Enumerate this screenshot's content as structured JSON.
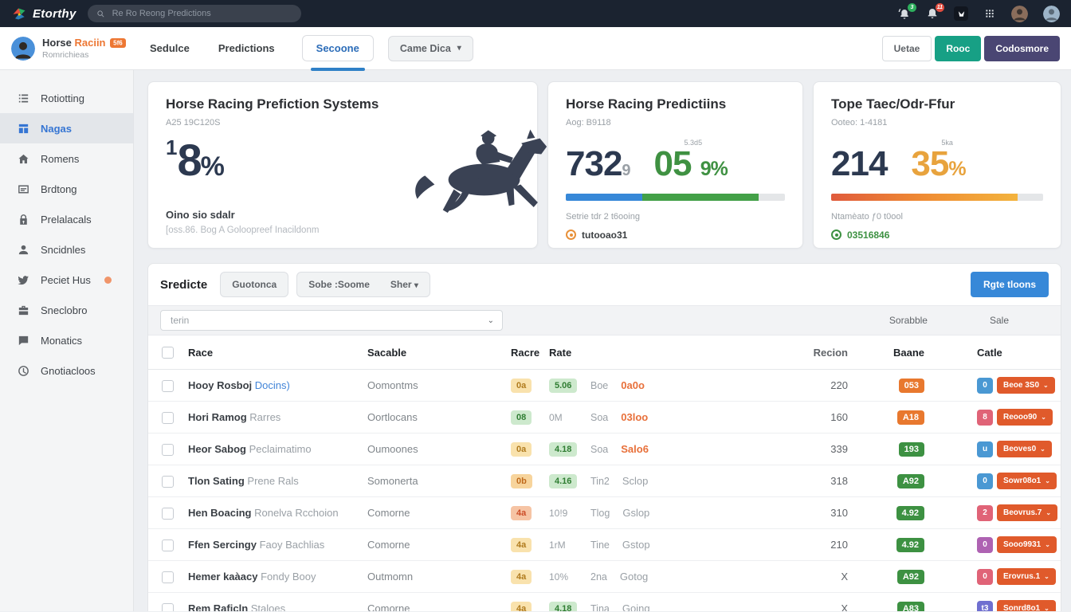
{
  "colors": {
    "accent_blue": "#3788d8",
    "teal": "#17a085",
    "purple": "#4a4673",
    "brand_orange": "#ed7733",
    "row_button_orange": "#e05a2b",
    "green": "#43a047",
    "stat_orange": "#e8a33d"
  },
  "topbar": {
    "logo": "Etorthy",
    "search_placeholder": "Re Ro Reong Predictions",
    "alarm_badge": "3",
    "bell_badge": "11",
    "icons": [
      "search-icon",
      "alarm-icon",
      "notifications-bell-icon",
      "app-mark-icon",
      "apps-grid-icon",
      "avatar",
      "avatar"
    ]
  },
  "subheader": {
    "title": "Horse",
    "title_accent": "Raciin",
    "title_badge": "5f6",
    "subtitle": "Romrichieas",
    "tabs": [
      {
        "label": "Sedulce",
        "active": false
      },
      {
        "label": "Predictions",
        "active": false
      },
      {
        "label": "Secoone",
        "active": true
      }
    ],
    "dropdown": "Came Dica",
    "actions": [
      {
        "label": "Uetae",
        "style": "outline"
      },
      {
        "label": "Rooc",
        "style": "teal"
      },
      {
        "label": "Codosmore",
        "style": "purple"
      }
    ]
  },
  "sidebar": {
    "items": [
      {
        "label": "Rotiotting",
        "icon": "list-icon",
        "active": false
      },
      {
        "label": "Nagas",
        "icon": "grid-icon",
        "active": true
      },
      {
        "label": "Romens",
        "icon": "home-icon",
        "active": false
      },
      {
        "label": "Brdtong",
        "icon": "card-icon",
        "active": false
      },
      {
        "label": "Prelalacals",
        "icon": "lock-icon",
        "active": false
      },
      {
        "label": "Sncidnles",
        "icon": "person-icon",
        "active": false
      },
      {
        "label": "Peciet Hus",
        "icon": "bird-icon",
        "active": false,
        "dot": true
      },
      {
        "label": "Sneclobro",
        "icon": "briefcase-icon",
        "active": false
      },
      {
        "label": "Monatics",
        "icon": "chat-icon",
        "active": false
      },
      {
        "label": "Gnotiacloos",
        "icon": "clock-icon",
        "active": false
      }
    ]
  },
  "cards": [
    {
      "title": "Horse Racing Prefiction Systems",
      "subtitle": "A25 19C120S",
      "stat_prefix": "1",
      "stat_value": "8",
      "stat_unit": "%",
      "footer_bold": "Oino sio sdalr",
      "footer_note": "[oss.86. Bog A Goloopreef Inacildonm"
    },
    {
      "title": "Horse Racing Predictiins",
      "subtitle": "Aog: B9118",
      "stat_value": "732",
      "stat_sub": "9",
      "stat2_label": "5.3d5",
      "stat2_value": "05",
      "stat2_unit": "9%",
      "progress_blue": 35,
      "progress_green": 53,
      "note": "Setrie tdr 2 t6ooing",
      "meta": "tutooao31"
    },
    {
      "title": "Tope Taec/Odr-Ffur",
      "subtitle": "Ooteo: 1-4181",
      "stat_value": "214",
      "stat2_label": "5ka",
      "stat2_value": "35",
      "stat2_unit": "%",
      "progress_fill": 88,
      "note": "Ntamèato ƒ0 t0ool",
      "meta": "03516846"
    }
  ],
  "table": {
    "heading": "Sredicte",
    "filter_button": "Guotonca",
    "sort_button": "Sobe :Soome",
    "sort_dropdown": "Sher",
    "primary_button": "Rgte tloons",
    "search_placeholder": "terin",
    "right_labels": [
      "Sorabble",
      "Sale"
    ],
    "columns": [
      "Race",
      "Sacable",
      "Racre",
      "Rate",
      "Recion",
      "Baane",
      "Catle"
    ],
    "rows": [
      {
        "name": "Hooy Rosboj",
        "name_suffix": "Docins)",
        "suffix_color": "blue",
        "sacable": "Oomontms",
        "racre": {
          "text": "0a",
          "color": "yellow"
        },
        "rate": {
          "text": "5.06",
          "color": "badge"
        },
        "pos": "Boe",
        "going": {
          "text": "0a0o",
          "color": "orange"
        },
        "recion": "220",
        "baane": {
          "text": "053",
          "color": "orange"
        },
        "catle": {
          "tag": "0",
          "tag_color": "blue",
          "button": "Beoe 3S0"
        }
      },
      {
        "name": "Hori Ramog",
        "name_suffix": "Rarres",
        "suffix_color": "gray",
        "sacable": "Oortlocans",
        "racre": {
          "text": "08",
          "color": "green"
        },
        "rate": {
          "text": "0M",
          "color": "plain"
        },
        "pos": "Soa",
        "going": {
          "text": "03loo",
          "color": "orange"
        },
        "recion": "160",
        "baane": {
          "text": "A18",
          "color": "orange"
        },
        "catle": {
          "tag": "8",
          "tag_color": "pink",
          "button": "Reooo90"
        }
      },
      {
        "name": "Heor Sabog",
        "name_suffix": "Peclaimatimo",
        "suffix_color": "gray",
        "sacable": "Oumoones",
        "racre": {
          "text": "0a",
          "color": "yellow"
        },
        "rate": {
          "text": "4.18",
          "color": "badge"
        },
        "pos": "Soa",
        "going": {
          "text": "Salo6",
          "color": "orange"
        },
        "recion": "339",
        "baane": {
          "text": "193",
          "color": "green"
        },
        "catle": {
          "tag": "u",
          "tag_color": "blue",
          "button": "Beoves0"
        }
      },
      {
        "name": "Tlon Sating",
        "name_suffix": "Prene Rals",
        "suffix_color": "gray",
        "sacable": "Somonerta",
        "racre": {
          "text": "0b",
          "color": "orange"
        },
        "rate": {
          "text": "4.16",
          "color": "badge"
        },
        "pos": "Tin2",
        "going": {
          "text": "Sclop",
          "color": "gray"
        },
        "recion": "318",
        "baane": {
          "text": "A92",
          "color": "green"
        },
        "catle": {
          "tag": "0",
          "tag_color": "blue",
          "button": "Sowr08o1"
        }
      },
      {
        "name": "Hen Boacing",
        "name_suffix": "Ronelva Rcchoion",
        "suffix_color": "gray",
        "sacable": "Comorne",
        "racre": {
          "text": "4a",
          "color": "red"
        },
        "rate": {
          "text": "10!9",
          "color": "plain"
        },
        "pos": "Tlog",
        "going": {
          "text": "Gslop",
          "color": "gray"
        },
        "recion": "310",
        "baane": {
          "text": "4.92",
          "color": "green"
        },
        "catle": {
          "tag": "2",
          "tag_color": "pink",
          "button": "Beovrus.7"
        }
      },
      {
        "name": "Ffen Sercingy",
        "name_suffix": "Faoy Bachlias",
        "suffix_color": "gray",
        "sacable": "Comorne",
        "racre": {
          "text": "4a",
          "color": "yellow"
        },
        "rate": {
          "text": "1rM",
          "color": "plain"
        },
        "pos": "Tine",
        "going": {
          "text": "Gstop",
          "color": "gray"
        },
        "recion": "210",
        "baane": {
          "text": "4.92",
          "color": "green"
        },
        "catle": {
          "tag": "0",
          "tag_color": "purple",
          "button": "Sooo9931"
        }
      },
      {
        "name": "Hemer kaàacy",
        "name_suffix": "Fondy Booy",
        "suffix_color": "gray",
        "sacable": "Outmomn",
        "racre": {
          "text": "4a",
          "color": "yellow"
        },
        "rate": {
          "text": "10%",
          "color": "plain"
        },
        "pos": "2na",
        "going": {
          "text": "Gotog",
          "color": "gray"
        },
        "recion": "X",
        "baane": {
          "text": "A92",
          "color": "green"
        },
        "catle": {
          "tag": "0",
          "tag_color": "pink",
          "button": "Erovrus.1"
        }
      },
      {
        "name": "Rem Raficln",
        "name_suffix": "Staloes",
        "suffix_color": "gray",
        "sacable": "Comorne",
        "racre": {
          "text": "4a",
          "color": "yellow"
        },
        "rate": {
          "text": "4.18",
          "color": "badge"
        },
        "pos": "Tina",
        "going": {
          "text": "Going",
          "color": "gray"
        },
        "recion": "X",
        "baane": {
          "text": "A83",
          "color": "green"
        },
        "catle": {
          "tag": "t3",
          "tag_color": "indigo",
          "button": "Sonrd8o1"
        }
      }
    ]
  }
}
